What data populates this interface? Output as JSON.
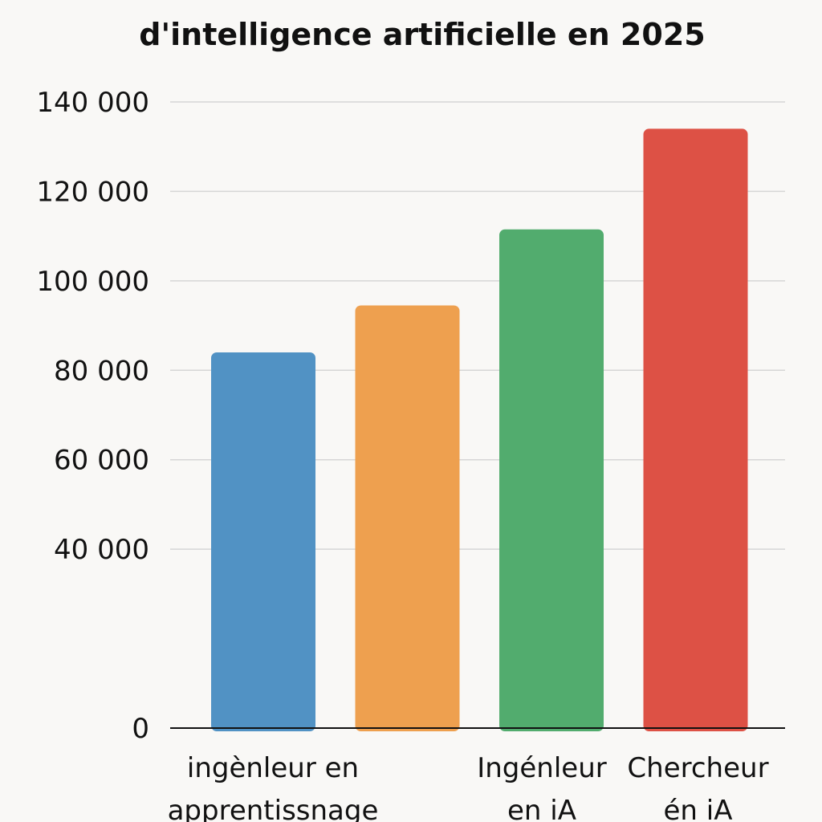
{
  "chart_data": {
    "type": "bar",
    "title": "d'intelligence artificielle en 2025",
    "categories": [
      [
        "ingènleur en",
        "apprentissnage"
      ],
      [
        "",
        ""
      ],
      [
        "Ingénleur",
        "en iA"
      ],
      [
        "Chercheur",
        "én iA"
      ]
    ],
    "values": [
      84000,
      94500,
      111500,
      134000
    ],
    "colors": [
      "#5192c4",
      "#eea04f",
      "#52ac6e",
      "#dd5145"
    ],
    "ylim": [
      0,
      140000
    ],
    "yticks": [
      0,
      40000,
      60000,
      80000,
      100000,
      120000,
      140000
    ],
    "ytick_labels": [
      "0",
      "40 000",
      "60 000",
      "80 000",
      "100 000",
      "120 000",
      "140 000"
    ],
    "grid": true,
    "legend": "none",
    "xlabel": "",
    "ylabel": ""
  }
}
